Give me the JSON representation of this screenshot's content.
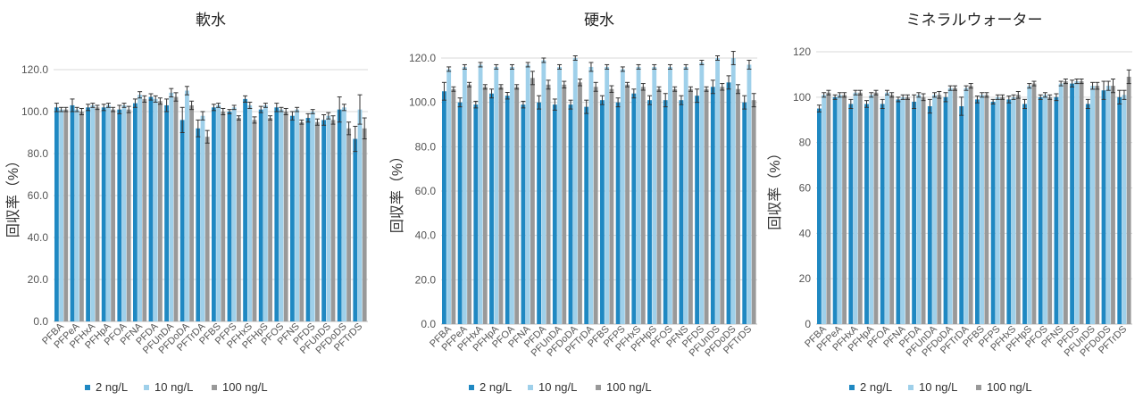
{
  "chart_data": [
    {
      "type": "bar",
      "title": "軟水",
      "ylabel": "回収率（%）",
      "xlabel": "",
      "ylim": [
        0,
        120
      ],
      "yticks": [
        "0.0",
        "20.0",
        "40.0",
        "60.0",
        "80.0",
        "100.0",
        "120.0"
      ],
      "grid": "horizontal",
      "legend": "bottom",
      "categories": [
        "PFBA",
        "PFPeA",
        "PFHxA",
        "PFHpA",
        "PFOA",
        "PFNA",
        "PFDA",
        "PFUnDA",
        "PFDoDA",
        "PFTrDA",
        "PFBS",
        "PFPS",
        "PFHxS",
        "PFHpS",
        "PFOS",
        "PFNS",
        "PFDS",
        "PFUnDS",
        "PFDoDS",
        "PFTrDS"
      ],
      "series": [
        {
          "name": "2 ng/L",
          "color": "#1f88c2",
          "values": [
            102,
            103,
            102,
            102,
            101,
            104,
            107,
            103,
            96,
            92,
            102,
            100,
            106,
            101,
            102,
            98,
            97,
            96,
            101,
            87
          ],
          "errors": [
            2,
            3,
            1.5,
            1.5,
            2,
            2,
            1.5,
            3,
            6,
            4,
            1.5,
            1,
            1.5,
            1.5,
            2,
            2,
            2,
            2.5,
            6,
            6
          ]
        },
        {
          "name": "10 ng/L",
          "color": "#9fd0ea",
          "values": [
            101,
            101,
            103,
            103,
            103,
            108,
            106,
            109,
            110,
            98,
            103,
            102,
            103,
            103,
            101,
            101,
            100,
            98,
            102,
            101
          ],
          "errors": [
            1,
            1,
            1,
            1,
            1,
            1.5,
            1.5,
            2,
            2,
            2,
            1,
            1,
            1.5,
            1,
            1,
            1,
            1,
            1.5,
            1.5,
            7
          ]
        },
        {
          "name": "100 ng/L",
          "color": "#999999",
          "values": [
            101,
            100,
            102,
            101,
            101,
            106,
            105,
            107,
            103,
            88,
            100,
            97,
            96,
            97,
            100,
            95,
            95,
            96,
            92,
            92
          ],
          "errors": [
            1,
            1.5,
            1,
            1,
            1.5,
            1.5,
            1.5,
            2,
            2,
            3,
            1.5,
            1,
            1.5,
            1,
            1.5,
            1,
            1.5,
            2,
            3,
            5
          ]
        }
      ]
    },
    {
      "type": "bar",
      "title": "硬水",
      "ylabel": "回収率（%）",
      "xlabel": "",
      "ylim": [
        0,
        120
      ],
      "yticks": [
        "0.0",
        "20.0",
        "40.0",
        "60.0",
        "80.0",
        "100.0",
        "120.0"
      ],
      "grid": "horizontal",
      "legend": "bottom",
      "categories": [
        "PFBA",
        "PFPeA",
        "PFHxA",
        "PFHpA",
        "PFOA",
        "PFNA",
        "PFDA",
        "PFUnDA",
        "PFDoDA",
        "PFTrDA",
        "PFBS",
        "PFPS",
        "PFHxS",
        "PFHpS",
        "PFOS",
        "PFNS",
        "PFDS",
        "PFUnDS",
        "PFDoDS",
        "PFTrDS"
      ],
      "series": [
        {
          "name": "2 ng/L",
          "color": "#1f88c2",
          "values": [
            105,
            100,
            99,
            104,
            103,
            99,
            100,
            99,
            99,
            98,
            101,
            100,
            104,
            101,
            101,
            101,
            103,
            107,
            109,
            100
          ],
          "errors": [
            4,
            2,
            1.5,
            2,
            1.5,
            1.5,
            3,
            2.5,
            2,
            3,
            2,
            2,
            2,
            2,
            3,
            2,
            3,
            3,
            3,
            3
          ]
        },
        {
          "name": "10 ng/L",
          "color": "#9fd0ea",
          "values": [
            115,
            116,
            117,
            116,
            116,
            117,
            119,
            116,
            120,
            116,
            116,
            115,
            116,
            116,
            116,
            116,
            118,
            120,
            120,
            117
          ],
          "errors": [
            1,
            1,
            1,
            1,
            1,
            1,
            1,
            1,
            1,
            2,
            1,
            1,
            1,
            1,
            1,
            1,
            1,
            1,
            3,
            2
          ]
        },
        {
          "name": "100 ng/L",
          "color": "#999999",
          "values": [
            106,
            108,
            107,
            107,
            107,
            111,
            108,
            108,
            109,
            107,
            106,
            108,
            107,
            106,
            106,
            106,
            106,
            107,
            106,
            101
          ],
          "errors": [
            1,
            1,
            1,
            1,
            1,
            3,
            2,
            1.5,
            1.5,
            2,
            1.5,
            1,
            1.5,
            1,
            1,
            1,
            1,
            1.5,
            2,
            3
          ]
        }
      ]
    },
    {
      "type": "bar",
      "title": "ミネラルウォーター",
      "ylabel": "回収率（%）",
      "xlabel": "",
      "ylim": [
        0,
        120
      ],
      "yticks": [
        "0",
        "20",
        "40",
        "60",
        "80",
        "100",
        "120"
      ],
      "grid": "horizontal",
      "legend": "bottom",
      "categories": [
        "PFBA",
        "PFPeA",
        "PFHxA",
        "PFHpA",
        "PFOA",
        "PFNA",
        "PFDA",
        "PFUnDA",
        "PFDoDA",
        "PFTrDA",
        "PFBS",
        "PFPS",
        "PFHxS",
        "PFHpS",
        "PFOS",
        "PFNS",
        "PFDS",
        "PFUnDS",
        "PFDoDS",
        "PFTrDS"
      ],
      "series": [
        {
          "name": "2 ng/L",
          "color": "#1f88c2",
          "values": [
            95,
            100,
            97,
            97,
            97,
            99,
            98,
            96,
            100,
            96,
            99,
            98,
            99,
            97,
            100,
            100,
            106,
            97,
            103,
            100
          ],
          "errors": [
            1.5,
            1,
            2,
            1.5,
            2,
            1,
            3,
            3,
            2,
            4,
            1.5,
            1,
            1.5,
            2,
            1,
            1.5,
            1.5,
            2,
            4,
            3
          ]
        },
        {
          "name": "10 ng/L",
          "color": "#9fd0ea",
          "values": [
            101,
            101,
            102,
            101,
            102,
            100,
            101,
            101,
            104,
            104,
            101,
            100,
            100,
            105,
            101,
            106,
            107,
            105,
            105,
            101
          ],
          "errors": [
            1,
            1,
            1,
            1,
            1,
            1,
            1,
            1,
            1,
            1,
            1,
            1,
            1,
            1,
            1,
            1,
            1,
            1.5,
            2,
            2
          ]
        },
        {
          "name": "100 ng/L",
          "color": "#999999",
          "values": [
            102,
            101,
            102,
            102,
            101,
            100,
            100,
            101,
            104,
            105,
            101,
            100,
            101,
            106,
            100,
            107,
            107,
            105,
            105,
            109
          ],
          "errors": [
            1,
            1,
            1,
            1,
            1,
            1,
            1.5,
            1.5,
            1,
            1,
            1,
            1,
            1.5,
            1,
            1,
            1,
            1,
            1.5,
            3,
            3
          ]
        }
      ]
    }
  ]
}
